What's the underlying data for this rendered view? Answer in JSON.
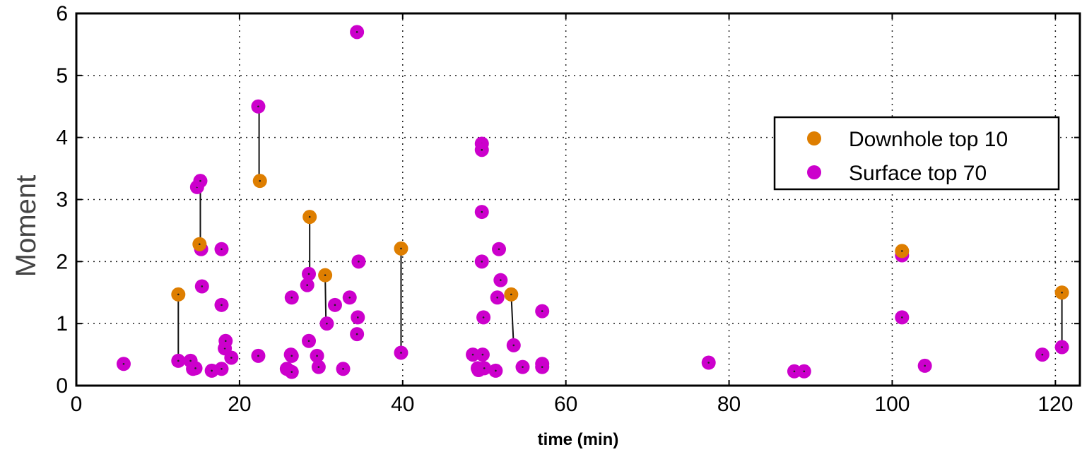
{
  "chart_data": {
    "type": "scatter",
    "title": "",
    "xlabel": "time (min)",
    "ylabel": "Moment",
    "xlim": [
      0,
      123
    ],
    "ylim": [
      0,
      6
    ],
    "xticks": [
      0,
      20,
      40,
      60,
      80,
      100,
      120
    ],
    "yticks": [
      0,
      1,
      2,
      3,
      4,
      5,
      6
    ],
    "grid": true,
    "legend_position": "right",
    "series": [
      {
        "name": "Downhole top 10",
        "color": "#de7e00",
        "points": [
          [
            12.5,
            1.47
          ],
          [
            15.1,
            2.28
          ],
          [
            22.5,
            3.3
          ],
          [
            28.6,
            2.72
          ],
          [
            30.5,
            1.78
          ],
          [
            39.8,
            2.21
          ],
          [
            53.3,
            1.47
          ],
          [
            101.2,
            2.17
          ],
          [
            120.8,
            1.5
          ]
        ]
      },
      {
        "name": "Surface top 70",
        "color": "#cc00cc",
        "points": [
          [
            5.8,
            0.35
          ],
          [
            12.5,
            0.4
          ],
          [
            14.0,
            0.4
          ],
          [
            14.3,
            0.27
          ],
          [
            14.6,
            0.28
          ],
          [
            14.8,
            3.2
          ],
          [
            15.2,
            3.3
          ],
          [
            15.3,
            2.2
          ],
          [
            15.4,
            1.6
          ],
          [
            16.6,
            0.24
          ],
          [
            17.8,
            2.2
          ],
          [
            17.8,
            1.3
          ],
          [
            17.8,
            0.27
          ],
          [
            18.2,
            0.6
          ],
          [
            18.3,
            0.72
          ],
          [
            19.0,
            0.45
          ],
          [
            22.3,
            4.5
          ],
          [
            22.3,
            0.48
          ],
          [
            25.8,
            0.27
          ],
          [
            26.3,
            0.5
          ],
          [
            26.4,
            0.48
          ],
          [
            26.4,
            0.22
          ],
          [
            26.4,
            1.42
          ],
          [
            28.5,
            1.8
          ],
          [
            28.3,
            1.62
          ],
          [
            28.5,
            0.72
          ],
          [
            29.5,
            0.48
          ],
          [
            29.7,
            0.3
          ],
          [
            30.7,
            1.0
          ],
          [
            31.7,
            1.3
          ],
          [
            32.7,
            0.27
          ],
          [
            33.5,
            1.42
          ],
          [
            34.4,
            5.7
          ],
          [
            34.6,
            2.0
          ],
          [
            34.5,
            1.1
          ],
          [
            34.4,
            0.83
          ],
          [
            39.8,
            0.53
          ],
          [
            48.6,
            0.5
          ],
          [
            49.2,
            0.28
          ],
          [
            49.3,
            0.25
          ],
          [
            49.7,
            3.9
          ],
          [
            49.7,
            3.8
          ],
          [
            49.7,
            2.8
          ],
          [
            49.7,
            2.0
          ],
          [
            49.8,
            0.5
          ],
          [
            49.9,
            1.1
          ],
          [
            50.0,
            0.28
          ],
          [
            51.4,
            0.24
          ],
          [
            51.6,
            1.42
          ],
          [
            51.8,
            2.2
          ],
          [
            52.0,
            1.7
          ],
          [
            53.6,
            0.65
          ],
          [
            54.7,
            0.3
          ],
          [
            57.1,
            1.2
          ],
          [
            57.1,
            0.35
          ],
          [
            57.1,
            0.3
          ],
          [
            77.5,
            0.37
          ],
          [
            88.0,
            0.23
          ],
          [
            89.2,
            0.23
          ],
          [
            101.2,
            2.1
          ],
          [
            101.2,
            1.1
          ],
          [
            104.0,
            0.32
          ],
          [
            118.4,
            0.5
          ],
          [
            120.8,
            0.62
          ]
        ]
      }
    ],
    "connectors": [
      [
        [
          12.5,
          1.47
        ],
        [
          12.5,
          0.4
        ]
      ],
      [
        [
          15.2,
          3.3
        ],
        [
          15.2,
          2.28
        ]
      ],
      [
        [
          22.4,
          4.5
        ],
        [
          22.4,
          3.3
        ]
      ],
      [
        [
          28.6,
          2.72
        ],
        [
          28.6,
          1.8
        ]
      ],
      [
        [
          30.5,
          1.78
        ],
        [
          30.6,
          1.0
        ]
      ],
      [
        [
          39.8,
          2.21
        ],
        [
          39.8,
          0.53
        ]
      ],
      [
        [
          53.3,
          1.47
        ],
        [
          53.6,
          0.65
        ]
      ],
      [
        [
          101.2,
          2.17
        ],
        [
          101.2,
          2.1
        ]
      ],
      [
        [
          120.8,
          1.5
        ],
        [
          120.8,
          0.62
        ]
      ]
    ]
  }
}
